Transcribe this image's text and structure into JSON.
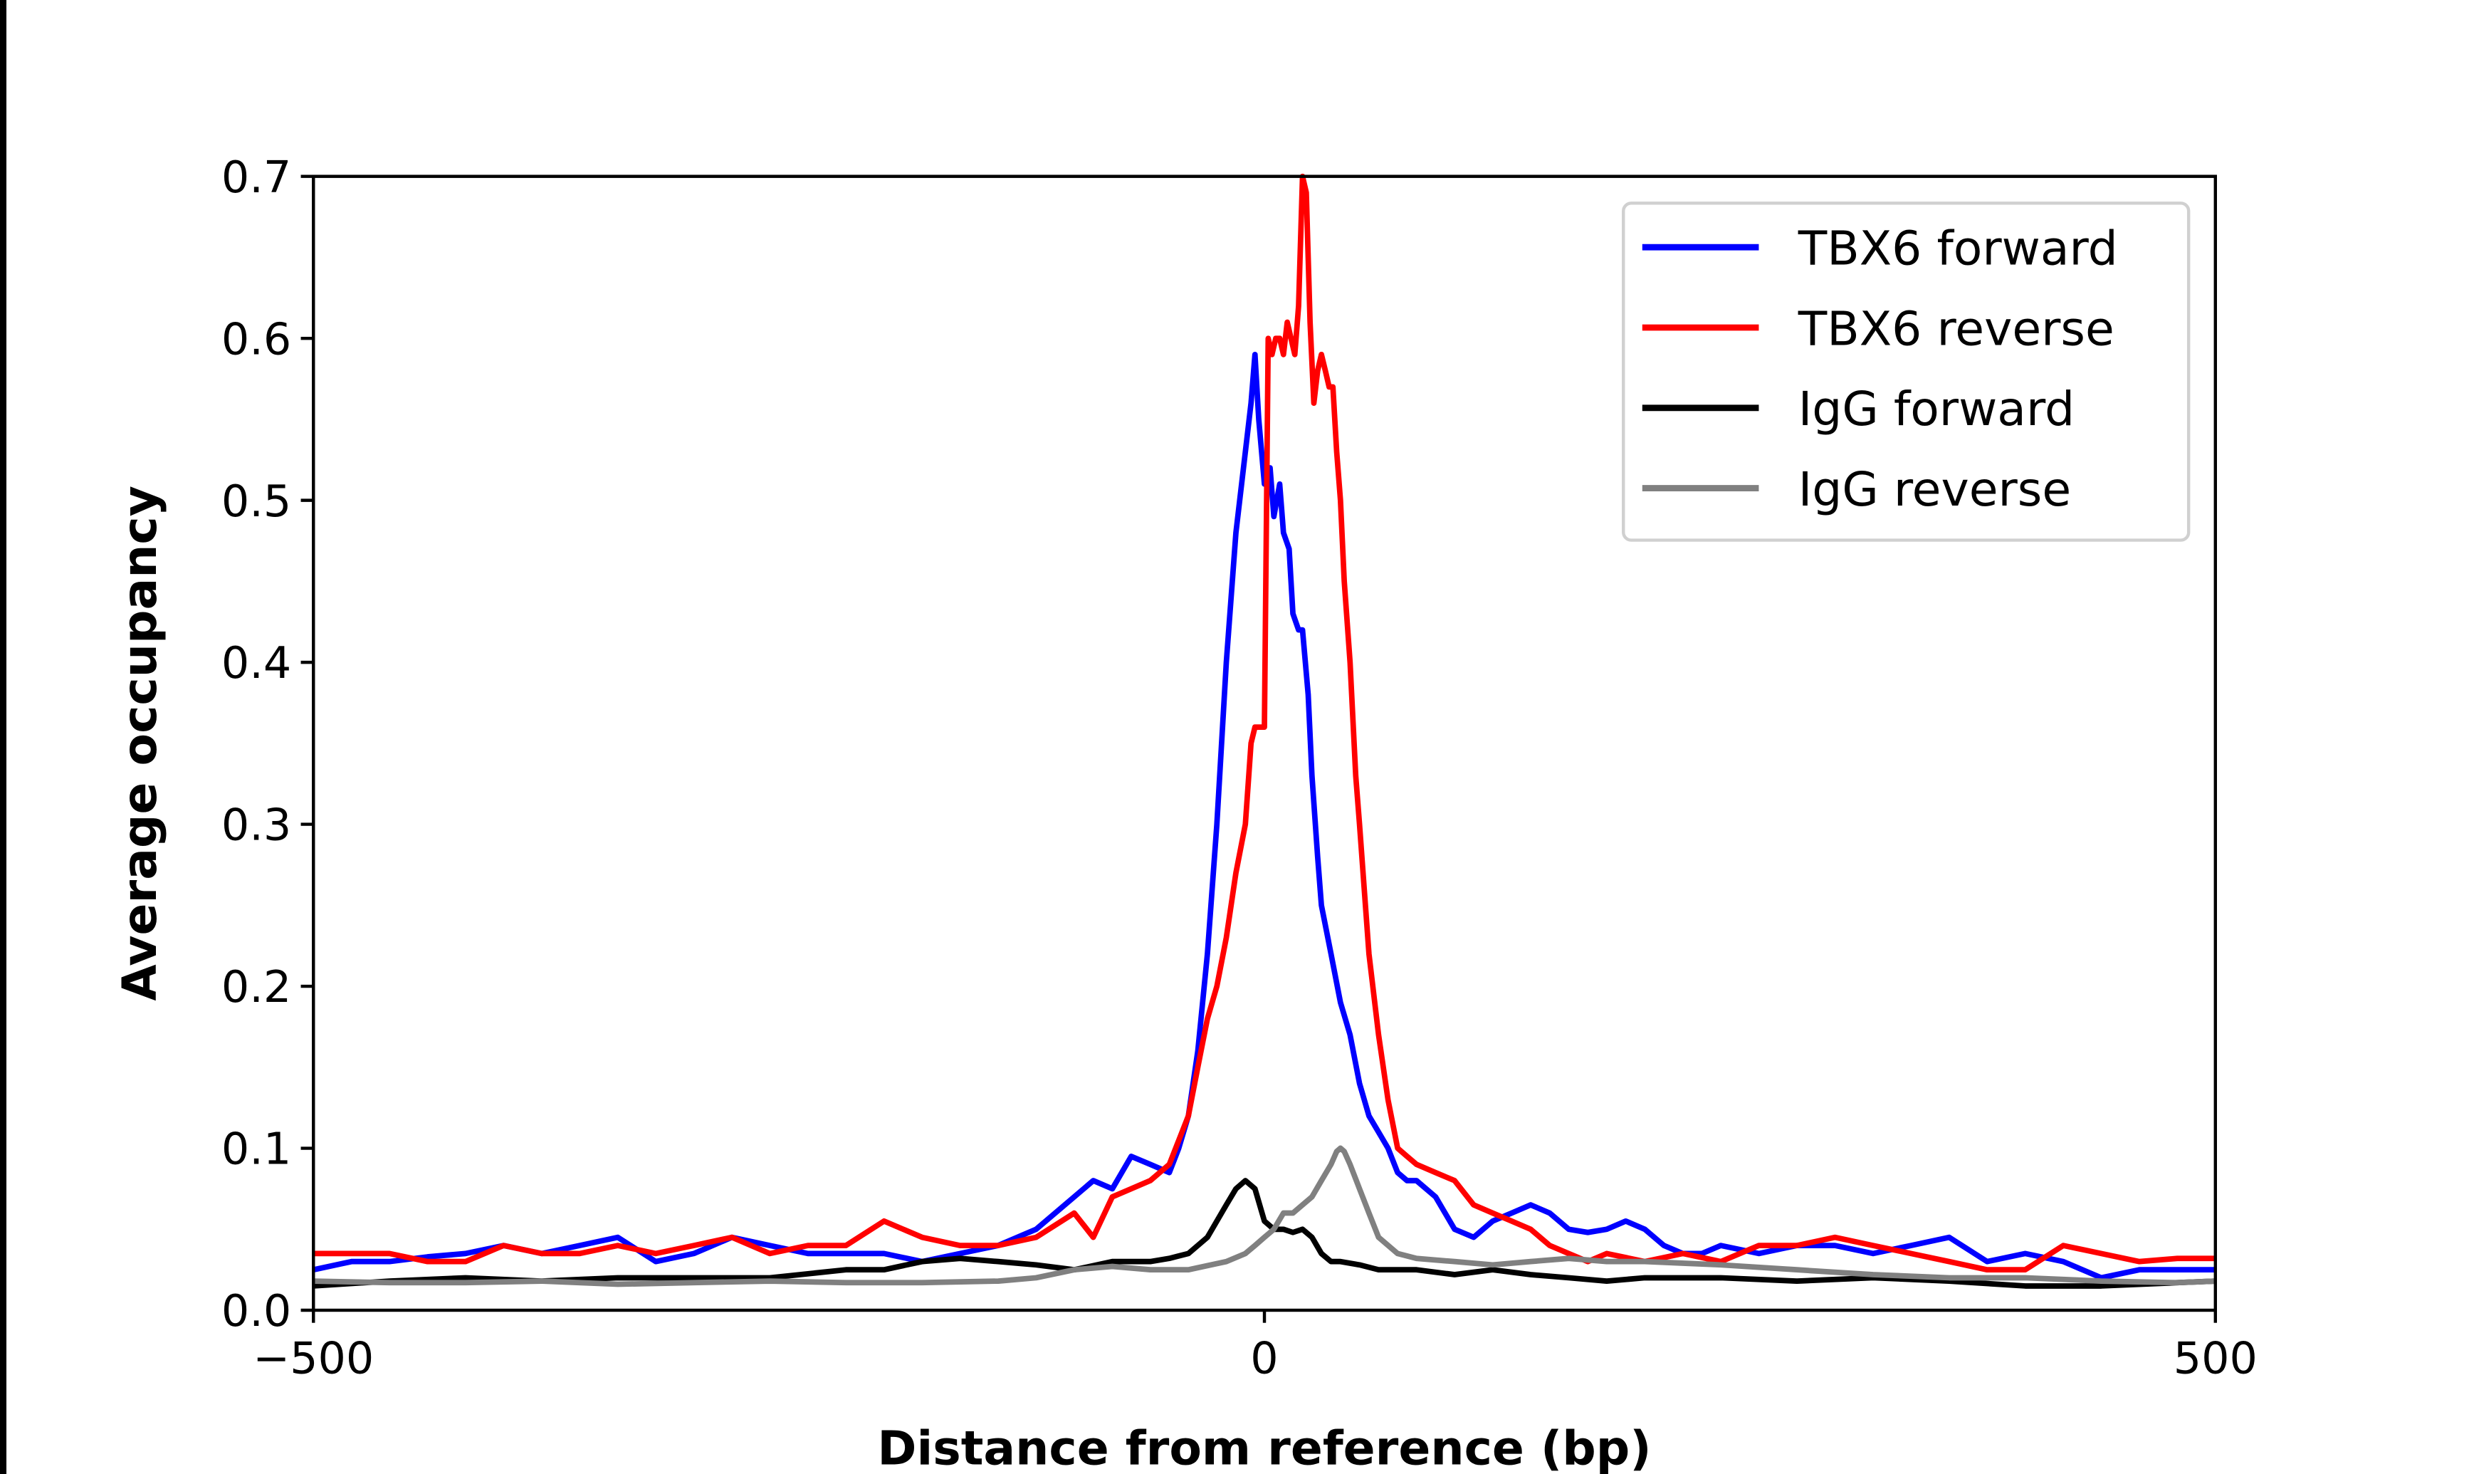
{
  "chart_data": {
    "type": "line",
    "title": "",
    "xlabel": "Distance from reference (bp)",
    "ylabel": "Average occupancy",
    "xlim": [
      -500,
      500
    ],
    "ylim": [
      0,
      0.7
    ],
    "xticks": [
      -500,
      0,
      500
    ],
    "xtick_labels": [
      "−500",
      "0",
      "500"
    ],
    "yticks": [
      0.0,
      0.1,
      0.2,
      0.3,
      0.4,
      0.5,
      0.6,
      0.7
    ],
    "ytick_labels": [
      "0.0",
      "0.1",
      "0.2",
      "0.3",
      "0.4",
      "0.5",
      "0.6",
      "0.7"
    ],
    "grid": false,
    "legend_position": "top-right",
    "series": [
      {
        "name": "TBX6 forward",
        "color": "#0000ff",
        "x": [
          -500,
          -480,
          -460,
          -440,
          -420,
          -400,
          -380,
          -360,
          -340,
          -320,
          -300,
          -280,
          -260,
          -240,
          -220,
          -200,
          -180,
          -160,
          -140,
          -120,
          -100,
          -90,
          -80,
          -70,
          -60,
          -50,
          -45,
          -40,
          -35,
          -30,
          -25,
          -20,
          -15,
          -10,
          -7,
          -5,
          -3,
          0,
          3,
          5,
          8,
          10,
          13,
          15,
          18,
          20,
          23,
          25,
          28,
          30,
          35,
          40,
          45,
          50,
          55,
          60,
          65,
          70,
          75,
          80,
          90,
          100,
          110,
          120,
          130,
          140,
          150,
          160,
          170,
          180,
          190,
          200,
          210,
          220,
          230,
          240,
          260,
          280,
          300,
          320,
          340,
          360,
          380,
          400,
          420,
          440,
          460,
          480,
          500
        ],
        "y": [
          0.025,
          0.03,
          0.03,
          0.033,
          0.035,
          0.04,
          0.035,
          0.04,
          0.045,
          0.03,
          0.035,
          0.045,
          0.04,
          0.035,
          0.035,
          0.035,
          0.03,
          0.035,
          0.04,
          0.05,
          0.07,
          0.08,
          0.075,
          0.095,
          0.09,
          0.085,
          0.1,
          0.12,
          0.16,
          0.22,
          0.3,
          0.4,
          0.48,
          0.53,
          0.56,
          0.59,
          0.55,
          0.51,
          0.52,
          0.49,
          0.51,
          0.48,
          0.47,
          0.43,
          0.42,
          0.42,
          0.38,
          0.33,
          0.28,
          0.25,
          0.22,
          0.19,
          0.17,
          0.14,
          0.12,
          0.11,
          0.1,
          0.085,
          0.08,
          0.08,
          0.07,
          0.05,
          0.045,
          0.055,
          0.06,
          0.065,
          0.06,
          0.05,
          0.048,
          0.05,
          0.055,
          0.05,
          0.04,
          0.035,
          0.035,
          0.04,
          0.035,
          0.04,
          0.04,
          0.035,
          0.04,
          0.045,
          0.03,
          0.035,
          0.03,
          0.02,
          0.025,
          0.025,
          0.025
        ]
      },
      {
        "name": "TBX6 reverse",
        "color": "#ff0000",
        "x": [
          -500,
          -480,
          -460,
          -440,
          -420,
          -400,
          -380,
          -360,
          -340,
          -320,
          -300,
          -280,
          -260,
          -240,
          -220,
          -200,
          -180,
          -160,
          -140,
          -120,
          -100,
          -90,
          -80,
          -70,
          -60,
          -50,
          -40,
          -35,
          -30,
          -25,
          -20,
          -15,
          -10,
          -7,
          -5,
          -3,
          0,
          2,
          4,
          6,
          8,
          10,
          12,
          14,
          16,
          18,
          20,
          22,
          24,
          26,
          28,
          30,
          32,
          34,
          36,
          38,
          40,
          42,
          45,
          48,
          50,
          55,
          60,
          65,
          70,
          75,
          80,
          90,
          100,
          110,
          120,
          130,
          140,
          150,
          160,
          170,
          180,
          200,
          220,
          240,
          260,
          280,
          300,
          320,
          340,
          360,
          380,
          400,
          420,
          440,
          460,
          480,
          500
        ],
        "y": [
          0.035,
          0.035,
          0.035,
          0.03,
          0.03,
          0.04,
          0.035,
          0.035,
          0.04,
          0.035,
          0.04,
          0.045,
          0.035,
          0.04,
          0.04,
          0.055,
          0.045,
          0.04,
          0.04,
          0.045,
          0.06,
          0.045,
          0.07,
          0.075,
          0.08,
          0.09,
          0.12,
          0.15,
          0.18,
          0.2,
          0.23,
          0.27,
          0.3,
          0.35,
          0.36,
          0.36,
          0.36,
          0.6,
          0.59,
          0.6,
          0.6,
          0.59,
          0.61,
          0.6,
          0.59,
          0.62,
          0.7,
          0.69,
          0.61,
          0.56,
          0.58,
          0.59,
          0.58,
          0.57,
          0.57,
          0.53,
          0.5,
          0.45,
          0.4,
          0.33,
          0.3,
          0.22,
          0.17,
          0.13,
          0.1,
          0.095,
          0.09,
          0.085,
          0.08,
          0.065,
          0.06,
          0.055,
          0.05,
          0.04,
          0.035,
          0.03,
          0.035,
          0.03,
          0.035,
          0.03,
          0.04,
          0.04,
          0.045,
          0.04,
          0.035,
          0.03,
          0.025,
          0.025,
          0.04,
          0.035,
          0.03,
          0.032,
          0.032
        ]
      },
      {
        "name": "IgG forward",
        "color": "#000000",
        "x": [
          -500,
          -460,
          -420,
          -380,
          -340,
          -300,
          -260,
          -220,
          -200,
          -180,
          -160,
          -140,
          -120,
          -100,
          -80,
          -60,
          -50,
          -40,
          -30,
          -25,
          -20,
          -15,
          -10,
          -5,
          0,
          5,
          10,
          15,
          20,
          25,
          30,
          35,
          40,
          50,
          60,
          80,
          100,
          120,
          140,
          160,
          180,
          200,
          240,
          280,
          320,
          360,
          400,
          440,
          480,
          500
        ],
        "y": [
          0.015,
          0.018,
          0.02,
          0.018,
          0.02,
          0.02,
          0.02,
          0.025,
          0.025,
          0.03,
          0.032,
          0.03,
          0.028,
          0.025,
          0.03,
          0.03,
          0.032,
          0.035,
          0.045,
          0.055,
          0.065,
          0.075,
          0.08,
          0.075,
          0.055,
          0.05,
          0.05,
          0.048,
          0.05,
          0.045,
          0.035,
          0.03,
          0.03,
          0.028,
          0.025,
          0.025,
          0.022,
          0.025,
          0.022,
          0.02,
          0.018,
          0.02,
          0.02,
          0.018,
          0.02,
          0.018,
          0.015,
          0.015,
          0.017,
          0.018
        ]
      },
      {
        "name": "IgG reverse",
        "color": "#808080",
        "x": [
          -500,
          -460,
          -420,
          -380,
          -340,
          -300,
          -260,
          -220,
          -180,
          -140,
          -120,
          -100,
          -80,
          -60,
          -40,
          -20,
          -10,
          -5,
          0,
          5,
          10,
          15,
          20,
          25,
          30,
          35,
          38,
          40,
          42,
          45,
          50,
          55,
          60,
          70,
          80,
          100,
          120,
          140,
          160,
          180,
          200,
          240,
          280,
          320,
          360,
          400,
          440,
          480,
          500
        ],
        "y": [
          0.018,
          0.017,
          0.017,
          0.018,
          0.016,
          0.017,
          0.018,
          0.017,
          0.017,
          0.018,
          0.02,
          0.025,
          0.027,
          0.025,
          0.025,
          0.03,
          0.035,
          0.04,
          0.045,
          0.05,
          0.06,
          0.06,
          0.065,
          0.07,
          0.08,
          0.09,
          0.098,
          0.1,
          0.098,
          0.09,
          0.075,
          0.06,
          0.045,
          0.035,
          0.032,
          0.03,
          0.028,
          0.03,
          0.032,
          0.03,
          0.03,
          0.028,
          0.025,
          0.022,
          0.02,
          0.02,
          0.018,
          0.017,
          0.018
        ]
      }
    ]
  }
}
